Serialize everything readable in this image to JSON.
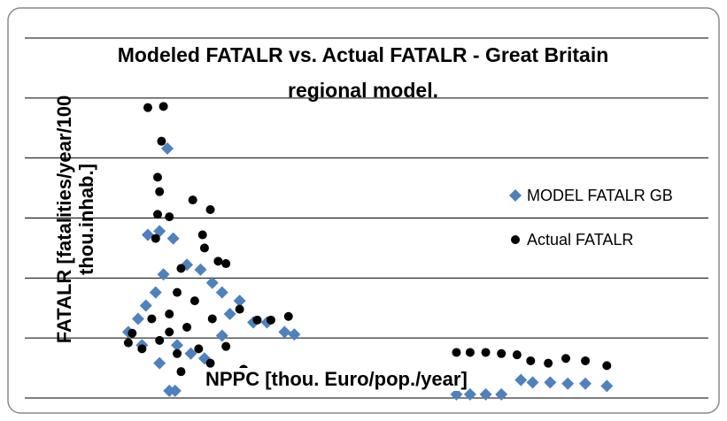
{
  "chart_data": {
    "type": "scatter",
    "title": "Modeled FATALR vs. Actual FATALR - Great Britain regional model.",
    "x_label": "NPPC [thou. Euro/pop./year]",
    "y_label": "FATALR [fatalities/year/100 thou.inhab.]",
    "xlim": [
      0,
      35
    ],
    "ylim": [
      0,
      30
    ],
    "yticks": [
      0,
      5,
      10,
      15,
      20,
      25,
      30
    ],
    "grid": true,
    "legend": "right",
    "series": [
      {
        "name": "MODEL FATALR GB",
        "color": "#4f81bd",
        "marker": "diamond",
        "x": [
          7.3,
          6.3,
          6.9,
          7.6,
          5.3,
          5.8,
          6.2,
          6.7,
          7.1,
          8.3,
          9.0,
          9.6,
          10.1,
          11.0,
          10.5,
          11.7,
          12.4,
          13.3,
          13.8,
          7.8,
          8.5,
          6.9,
          7.4,
          7.7,
          9.2,
          6.0,
          10.1,
          22.1,
          22.8,
          23.6,
          24.4,
          26.0,
          26.9,
          27.8,
          28.7,
          29.8,
          25.4
        ],
        "values": [
          20.8,
          13.6,
          13.9,
          13.3,
          5.5,
          6.6,
          7.7,
          8.8,
          10.3,
          11.1,
          10.7,
          9.6,
          8.8,
          8.1,
          7.0,
          6.3,
          6.3,
          5.5,
          5.3,
          4.4,
          3.7,
          2.9,
          0.6,
          0.6,
          3.3,
          4.4,
          5.2,
          0.3,
          0.3,
          0.3,
          0.3,
          1.3,
          1.3,
          1.2,
          1.2,
          1.0,
          1.5
        ]
      },
      {
        "name": "Actual FATALR",
        "color": "#000000",
        "marker": "circle",
        "x": [
          6.3,
          7.1,
          7.0,
          6.8,
          6.9,
          6.8,
          7.4,
          8.6,
          9.5,
          9.1,
          9.2,
          9.9,
          10.3,
          8.0,
          6.7,
          7.8,
          8.7,
          7.4,
          8.3,
          9.6,
          11.0,
          11.9,
          12.6,
          13.5,
          5.5,
          5.3,
          6.0,
          6.9,
          7.8,
          8.9,
          10.3,
          11.2,
          8.0,
          9.5,
          7.4,
          6.5,
          22.1,
          22.8,
          23.6,
          24.4,
          25.2,
          25.9,
          26.8,
          27.7,
          28.7,
          29.8
        ],
        "values": [
          24.2,
          24.3,
          21.4,
          18.4,
          17.2,
          15.3,
          15.1,
          16.5,
          15.7,
          13.6,
          12.5,
          11.4,
          11.2,
          10.8,
          13.3,
          8.8,
          8.1,
          7.0,
          5.9,
          6.6,
          7.4,
          6.5,
          6.5,
          6.8,
          5.4,
          4.6,
          4.1,
          4.8,
          3.7,
          4.1,
          4.3,
          2.4,
          2.2,
          2.9,
          5.5,
          6.6,
          3.8,
          3.8,
          3.8,
          3.7,
          3.6,
          3.1,
          2.9,
          3.3,
          3.1,
          2.7
        ]
      }
    ]
  }
}
